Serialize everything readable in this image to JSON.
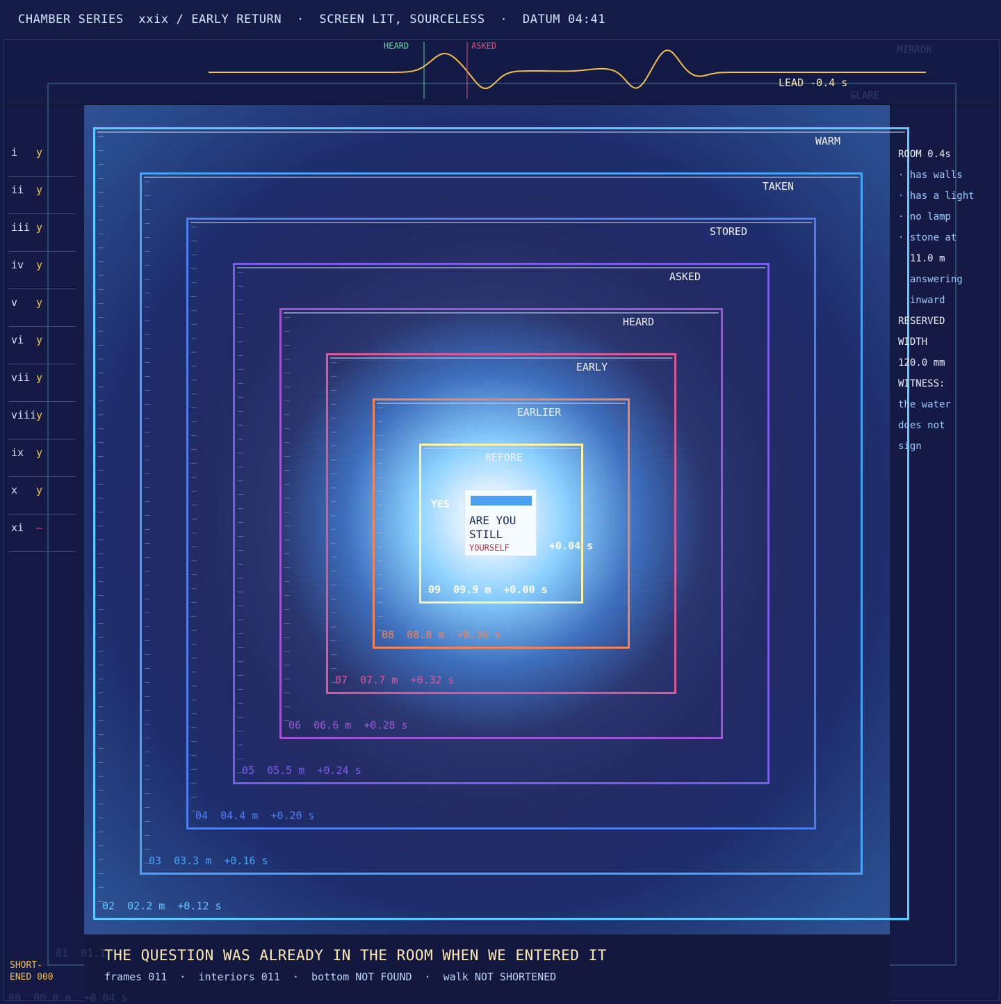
{
  "header": {
    "title": "CHAMBER SERIES  xxix / EARLY RETURN  ·  SCREEN LIT, SOURCELESS  ·  DATUM 04:41"
  },
  "strip": {
    "heard_label": "HEARD",
    "asked_label": "ASKED",
    "lead": "LEAD  -0.4 s",
    "mirror": "MIRROR",
    "glare": "GLARE",
    "colors": {
      "wave": "#f2c24a",
      "heard": "#5fd89a",
      "asked": "#e05878"
    }
  },
  "frames": [
    {
      "name": "WARM",
      "readout": "02  02.2 m  +0.12 s",
      "color": "#5fc8ff"
    },
    {
      "name": "TAKEN",
      "readout": "03  03.3 m  +0.16 s",
      "color": "#4aa3f5"
    },
    {
      "name": "STORED",
      "readout": "04  04.4 m  +0.20 s",
      "color": "#4f7fee"
    },
    {
      "name": "ASKED",
      "readout": "05  05.5 m  +0.24 s",
      "color": "#7a5ee6"
    },
    {
      "name": "HEARD",
      "readout": "06  06.6 m  +0.28 s",
      "color": "#9e57d4"
    },
    {
      "name": "EARLY",
      "readout": "07  07.7 m  +0.32 s",
      "color": "#d75a9a"
    },
    {
      "name": "EARLIER",
      "readout": "08  08.8 m  +0.36 s",
      "color": "#f0845a"
    },
    {
      "name": "BEFORE",
      "readout": "09  09.9 m  +0.00 s",
      "color": "#fff3a8"
    }
  ],
  "ghosts": {
    "frame01": "01  01.1",
    "frame00": "00  00.0 m  +0.04 s"
  },
  "index": [
    {
      "num": "i",
      "mark": "y"
    },
    {
      "num": "ii",
      "mark": "y"
    },
    {
      "num": "iii",
      "mark": "y"
    },
    {
      "num": "iv",
      "mark": "y"
    },
    {
      "num": "v",
      "mark": "y"
    },
    {
      "num": "vi",
      "mark": "y"
    },
    {
      "num": "vii",
      "mark": "y"
    },
    {
      "num": "viii",
      "mark": "y"
    },
    {
      "num": "ix",
      "mark": "y"
    },
    {
      "num": "x",
      "mark": "y"
    },
    {
      "num": "xi",
      "mark": "—"
    }
  ],
  "notes": [
    {
      "text": "ROOM 0.4s",
      "kind": "hdr"
    },
    {
      "text": "· has walls",
      "kind": "sub"
    },
    {
      "text": "· has a light",
      "kind": "sub"
    },
    {
      "text": "· no lamp",
      "kind": "sub"
    },
    {
      "text": "· stone at",
      "kind": "sub"
    },
    {
      "text": "  11.0 m",
      "kind": "hdr"
    },
    {
      "text": "  answering",
      "kind": "sub"
    },
    {
      "text": "  inward",
      "kind": "sub"
    },
    {
      "text": "RESERVED",
      "kind": "hdr"
    },
    {
      "text": "WIDTH",
      "kind": "hdr"
    },
    {
      "text": "120.0 mm",
      "kind": "hdr"
    },
    {
      "text": "WITNESS:",
      "kind": "hdr"
    },
    {
      "text": "the water",
      "kind": "sub"
    },
    {
      "text": "does not",
      "kind": "sub"
    },
    {
      "text": "sign",
      "kind": "sub"
    }
  ],
  "dialog": {
    "line1": "ARE YOU",
    "line2": "STILL",
    "line3": "YOURSELF"
  },
  "center": {
    "yes": "YES",
    "delta": "+0.04 s"
  },
  "caption": "THE QUESTION WAS ALREADY IN THE ROOM WHEN WE ENTERED IT",
  "status": "frames 011  ·  interiors 011  ·  bottom NOT FOUND  ·  walk NOT SHORTENED",
  "shortened": "SHORT-\nENED 000"
}
